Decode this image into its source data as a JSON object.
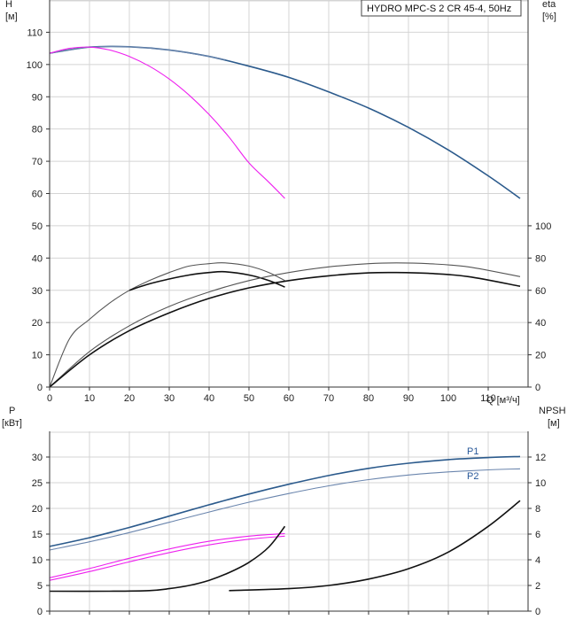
{
  "chart_data": {
    "type": "line",
    "title": "HYDRO MPC-S 2 CR 45-4, 50Hz",
    "xlabel": "Q [м³/ч]",
    "x_ticks": [
      "0",
      "10",
      "20",
      "30",
      "40",
      "50",
      "60",
      "70",
      "80",
      "90",
      "100",
      "110"
    ],
    "xlim": [
      0,
      120
    ],
    "panels": [
      {
        "id": "head-efficiency",
        "ylabel_left": "H\n[м]",
        "ylabel_right": "eta\n[%]",
        "ylim_left": [
          0,
          120
        ],
        "y_ticks_left": [
          "0",
          "10",
          "20",
          "30",
          "40",
          "50",
          "60",
          "70",
          "80",
          "90",
          "100",
          "110"
        ],
        "ylim_right": [
          0,
          240
        ],
        "y_ticks_right": [
          "0",
          "20",
          "40",
          "60",
          "80",
          "100"
        ],
        "grid": true,
        "series": [
          {
            "axis": "left",
            "color": "#2b5a8c",
            "x": [
              0,
              10,
              20,
              30,
              40,
              50,
              60,
              70,
              80,
              90,
              100,
              110,
              118
            ],
            "y": [
              103.5,
              105.4,
              105.5,
              104.5,
              102.5,
              99.5,
              96,
              91.5,
              86.5,
              80.5,
              73.5,
              65.5,
              58.5
            ]
          },
          {
            "axis": "left",
            "color": "#6a85ad",
            "x": [
              0,
              10,
              20,
              30,
              40,
              44
            ],
            "y": [
              103.5,
              105.4,
              105.5,
              104.5,
              102.5,
              101.5
            ]
          },
          {
            "axis": "left",
            "color": "#ee20ee",
            "x": [
              0,
              5,
              10,
              15,
              20,
              25,
              30,
              35,
              40,
              45,
              50,
              55,
              59
            ],
            "y": [
              103.5,
              105,
              105.4,
              104.5,
              102.5,
              99.5,
              95.5,
              90.5,
              84.5,
              77.5,
              69.5,
              63.5,
              58.5
            ]
          },
          {
            "axis": "right",
            "color": "#555555",
            "x": [
              0,
              5,
              10,
              15,
              20,
              25,
              30,
              35,
              40,
              44,
              50,
              55,
              59
            ],
            "y": [
              0,
              30,
              42,
              52,
              60,
              66,
              71,
              75,
              76.5,
              77,
              75,
              71,
              66
            ]
          },
          {
            "axis": "right",
            "color": "#111111",
            "x": [
              20,
              25,
              30,
              35,
              40,
              44,
              50,
              55,
              59
            ],
            "y": [
              60,
              64,
              67,
              69.5,
              71,
              71.5,
              69.5,
              66,
              62
            ]
          },
          {
            "axis": "right",
            "color": "#555555",
            "x": [
              0,
              10,
              20,
              30,
              40,
              50,
              60,
              70,
              80,
              87,
              95,
              105,
              118
            ],
            "y": [
              0,
              22,
              38,
              50,
              59,
              66,
              71,
              74.5,
              76.5,
              77,
              76.5,
              74.5,
              68.5
            ]
          },
          {
            "axis": "right",
            "color": "#111111",
            "x": [
              0,
              10,
              20,
              30,
              40,
              50,
              60,
              70,
              80,
              87,
              95,
              105,
              118
            ],
            "y": [
              0,
              20,
              35,
              46,
              55,
              61.5,
              66,
              69,
              70.8,
              71,
              70.5,
              68.5,
              62.5
            ]
          }
        ]
      },
      {
        "id": "power-npsh",
        "ylabel_left": "P\n[кВт]",
        "ylabel_right": "NPSH\n[м]",
        "ylim_left": [
          0,
          35
        ],
        "y_ticks_left": [
          "0",
          "5",
          "10",
          "15",
          "20",
          "25",
          "30"
        ],
        "ylim_right": [
          0,
          14
        ],
        "y_ticks_right": [
          "0",
          "2",
          "4",
          "6",
          "8",
          "10",
          "12"
        ],
        "grid": true,
        "series": [
          {
            "name": "P1",
            "axis": "left",
            "color": "#2b5a8c",
            "x": [
              0,
              10,
              20,
              30,
              40,
              50,
              60,
              70,
              80,
              90,
              100,
              110,
              118
            ],
            "y": [
              12.6,
              14.3,
              16.3,
              18.5,
              20.7,
              22.8,
              24.7,
              26.4,
              27.8,
              28.8,
              29.5,
              29.9,
              30.1
            ]
          },
          {
            "name": "P2",
            "axis": "left",
            "color": "#6a85ad",
            "x": [
              0,
              10,
              20,
              30,
              40,
              50,
              60,
              70,
              80,
              90,
              100,
              110,
              118
            ],
            "y": [
              11.9,
              13.5,
              15.3,
              17.3,
              19.3,
              21.2,
              22.9,
              24.4,
              25.6,
              26.5,
              27.1,
              27.5,
              27.7
            ]
          },
          {
            "axis": "left",
            "color": "#ee20ee",
            "x": [
              0,
              10,
              20,
              30,
              40,
              50,
              59
            ],
            "y": [
              6.5,
              8.3,
              10.3,
              12.1,
              13.6,
              14.6,
              15.1
            ]
          },
          {
            "axis": "left",
            "color": "#ee20ee",
            "x": [
              0,
              10,
              20,
              30,
              40,
              50,
              59
            ],
            "y": [
              6.0,
              7.7,
              9.6,
              11.4,
              12.9,
              14.0,
              14.6
            ]
          },
          {
            "axis": "right",
            "color": "#111111",
            "x": [
              0,
              15,
              25,
              30,
              35,
              40,
              45,
              50,
              55,
              59
            ],
            "y": [
              1.55,
              1.55,
              1.6,
              1.75,
              2.0,
              2.4,
              3.0,
              3.8,
              5.0,
              6.6
            ]
          },
          {
            "axis": "right",
            "color": "#111111",
            "x": [
              45,
              60,
              70,
              80,
              90,
              100,
              110,
              118
            ],
            "y": [
              1.6,
              1.75,
              2.0,
              2.5,
              3.3,
              4.6,
              6.6,
              8.6
            ]
          }
        ]
      }
    ],
    "labels": [
      "P1",
      "P2"
    ]
  }
}
